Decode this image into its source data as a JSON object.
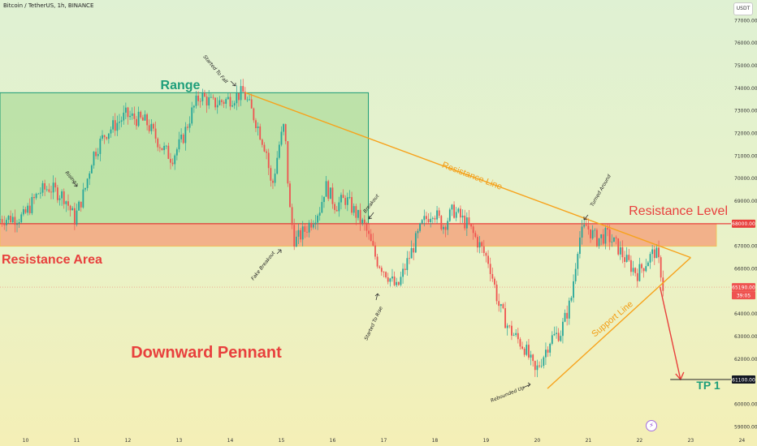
{
  "header": {
    "symbol_title": "Bitcoin / TetherUS, 1h, BINANCE",
    "currency_button": "USDT"
  },
  "price_axis": {
    "ticks": [
      "77000.00",
      "76000.00",
      "75000.00",
      "74000.00",
      "73000.00",
      "72000.00",
      "71000.00",
      "70000.00",
      "69000.00",
      "67000.00",
      "66000.00",
      "64000.00",
      "63000.00",
      "62000.00",
      "60000.00",
      "59000.00"
    ],
    "resistance_badge": "68000.00",
    "current_price_badge": "65190.00",
    "countdown_badge": "39:05",
    "target_badge": "61100.00"
  },
  "time_axis": {
    "labels": [
      "10",
      "11",
      "12",
      "13",
      "14",
      "15",
      "16",
      "17",
      "18",
      "19",
      "20",
      "21",
      "22",
      "23",
      "24"
    ]
  },
  "annotations": {
    "range": "Range",
    "resistance_area": "Resistance Area",
    "resistance_level": "Resistance Level",
    "resistance_line": "Resistance Line",
    "support_line": "Support Line",
    "downward_pennant": "Downward Pennant",
    "tp1": "TP 1",
    "rising": "Rising",
    "started_to_fall": "Started To Fall",
    "breakout": "Breakout",
    "fake_breakout": "Fake Breakout",
    "started_to_rise": "Started To Rise",
    "turned_around": "Turned Around",
    "rebounded_up": "Rebounded Up"
  },
  "colors": {
    "bull": "#26a69a",
    "bear": "#ef5350",
    "range_box": "#8fd07c",
    "resistance_zone": "#f4a07a",
    "trendline": "#f7a21b",
    "target_arrow": "#e8403d",
    "text_green": "#1e9e7a",
    "text_red": "#e8403d",
    "text_orange": "#f39c12"
  },
  "chart_data": {
    "type": "candlestick",
    "symbol": "Bitcoin / TetherUS",
    "timeframe": "1h",
    "exchange": "BINANCE",
    "x_axis_labels": [
      "10",
      "11",
      "12",
      "13",
      "14",
      "15",
      "16",
      "17",
      "18",
      "19",
      "20",
      "21",
      "22",
      "23",
      "24"
    ],
    "ylim": [
      58800,
      77800
    ],
    "resistance_level": 68000,
    "resistance_zone": [
      67000,
      68000
    ],
    "range_box": {
      "x_from": 9.5,
      "x_to": 16.7,
      "y_from": 68000,
      "y_to": 73800
    },
    "resistance_line": {
      "from": [
        14.3,
        73800
      ],
      "to": [
        23.0,
        66500
      ]
    },
    "support_line": {
      "from": [
        20.2,
        60700
      ],
      "to": [
        23.0,
        66500
      ]
    },
    "current_price": 65190,
    "target_price": 61100,
    "target_arrow": {
      "from": [
        22.4,
        65200
      ],
      "to": [
        22.8,
        61100
      ]
    },
    "path": [
      [
        9.5,
        68200
      ],
      [
        10.0,
        68300
      ],
      [
        10.3,
        69400
      ],
      [
        10.5,
        69600
      ],
      [
        10.8,
        69200
      ],
      [
        11.0,
        68200
      ],
      [
        11.2,
        69500
      ],
      [
        11.35,
        71000
      ],
      [
        11.6,
        72000
      ],
      [
        12.0,
        72800
      ],
      [
        12.4,
        72500
      ],
      [
        12.7,
        71400
      ],
      [
        12.9,
        70900
      ],
      [
        13.1,
        71700
      ],
      [
        13.3,
        73000
      ],
      [
        13.45,
        73700
      ],
      [
        13.7,
        73300
      ],
      [
        14.0,
        73500
      ],
      [
        14.3,
        73800
      ],
      [
        14.55,
        72500
      ],
      [
        14.75,
        71200
      ],
      [
        14.85,
        69500
      ],
      [
        15.0,
        71500
      ],
      [
        15.1,
        72400
      ],
      [
        15.2,
        68700
      ],
      [
        15.3,
        67200
      ],
      [
        15.5,
        67700
      ],
      [
        15.8,
        68700
      ],
      [
        15.9,
        69700
      ],
      [
        16.1,
        68800
      ],
      [
        16.3,
        69100
      ],
      [
        16.6,
        68100
      ],
      [
        16.7,
        67700
      ],
      [
        16.9,
        66400
      ],
      [
        17.1,
        65800
      ],
      [
        17.3,
        65100
      ],
      [
        17.5,
        66300
      ],
      [
        17.8,
        68000
      ],
      [
        18.0,
        68600
      ],
      [
        18.2,
        67900
      ],
      [
        18.4,
        68600
      ],
      [
        18.7,
        67900
      ],
      [
        18.9,
        67100
      ],
      [
        19.1,
        66300
      ],
      [
        19.3,
        64300
      ],
      [
        19.5,
        63300
      ],
      [
        19.8,
        62500
      ],
      [
        20.0,
        61400
      ],
      [
        20.15,
        62100
      ],
      [
        20.3,
        62900
      ],
      [
        20.5,
        63200
      ],
      [
        20.7,
        64600
      ],
      [
        20.85,
        67300
      ],
      [
        21.0,
        67900
      ],
      [
        21.2,
        67300
      ],
      [
        21.4,
        67500
      ],
      [
        21.6,
        67000
      ],
      [
        21.8,
        66300
      ],
      [
        22.0,
        65800
      ],
      [
        22.2,
        66400
      ],
      [
        22.35,
        66800
      ],
      [
        22.45,
        66000
      ],
      [
        22.5,
        65190
      ]
    ],
    "label_points": {
      "rising": [
        10.9,
        70200
      ],
      "started_to_fall": [
        14.2,
        74600
      ],
      "breakout": [
        16.8,
        68500
      ],
      "fake_breakout": [
        15.2,
        66400
      ],
      "started_to_rise": [
        17.1,
        64000
      ],
      "turned_around": [
        20.9,
        69200
      ],
      "rebounded_up": [
        19.8,
        60600
      ]
    }
  }
}
